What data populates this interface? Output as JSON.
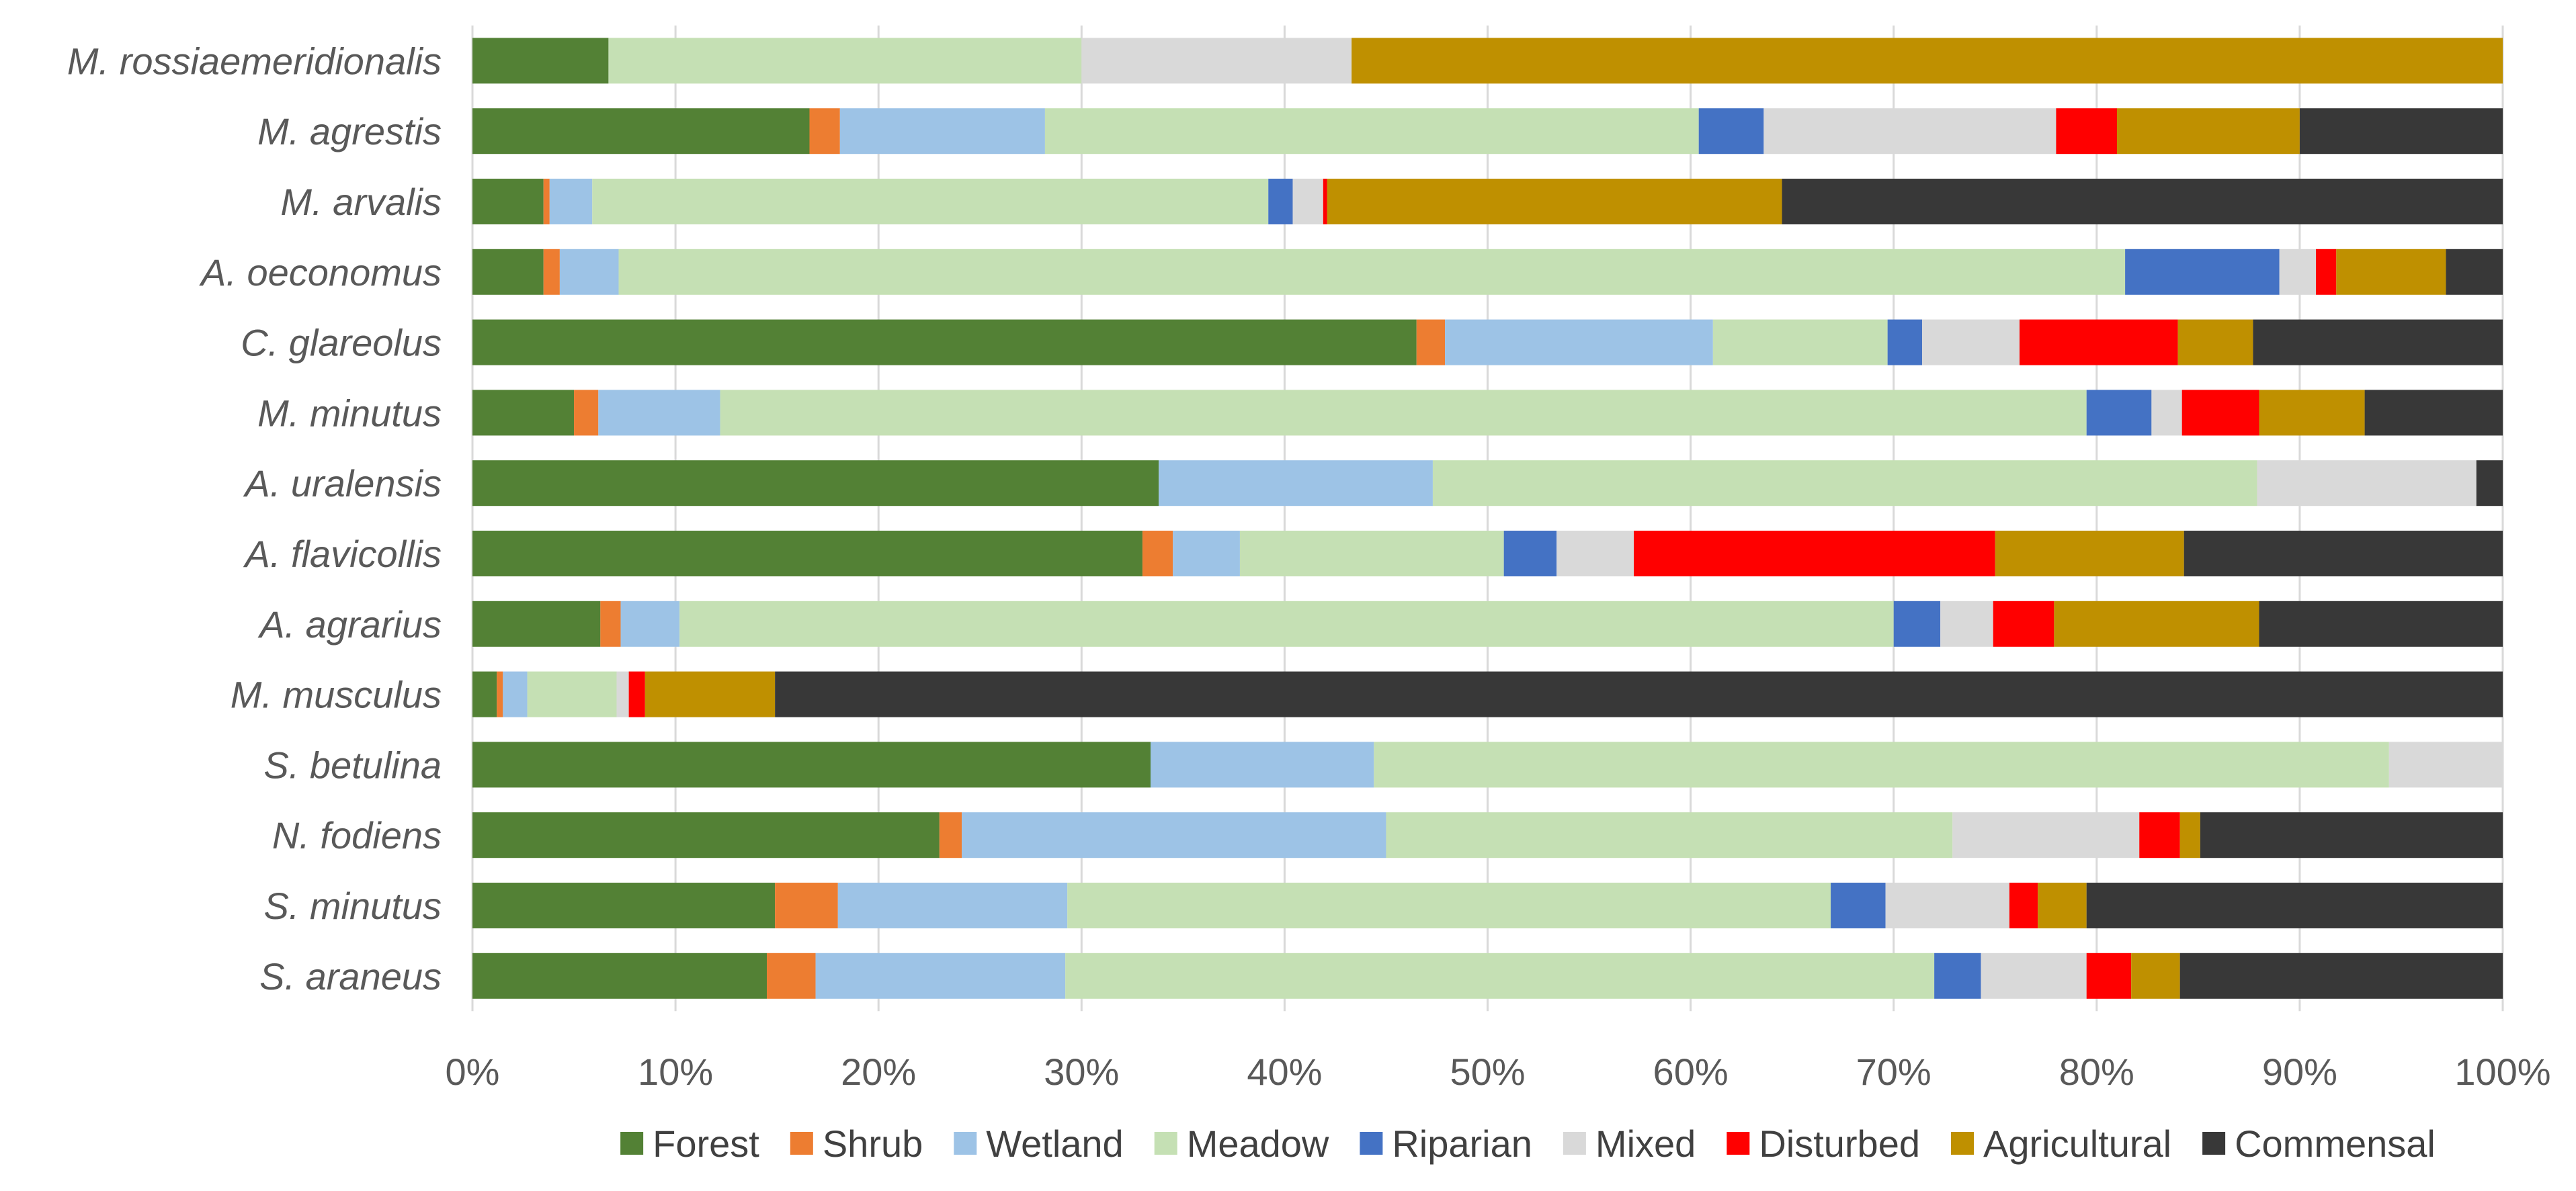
{
  "chart_data": {
    "type": "bar",
    "orientation": "horizontal",
    "stacked": "percent",
    "title": "",
    "xlabel": "",
    "ylabel": "",
    "xlim": [
      0,
      100
    ],
    "x_ticks": [
      "0%",
      "10%",
      "20%",
      "30%",
      "40%",
      "50%",
      "60%",
      "70%",
      "80%",
      "90%",
      "100%"
    ],
    "grid": "vertical",
    "legend_position": "bottom",
    "categories": [
      "M. rossiaemeridionalis",
      "M. agrestis",
      "M. arvalis",
      "A. oeconomus",
      "C. glareolus",
      "M. minutus",
      "A. uralensis",
      "A. flavicollis",
      "A. agrarius",
      "M. musculus",
      "S. betulina",
      "N. fodiens",
      "S. minutus",
      "S. araneus"
    ],
    "series": [
      {
        "name": "Forest",
        "color": "#538135",
        "values": [
          6.7,
          16.6,
          3.5,
          3.5,
          46.5,
          5.0,
          33.8,
          33.0,
          6.3,
          1.2,
          33.4,
          23.0,
          14.9,
          14.5
        ]
      },
      {
        "name": "Shrub",
        "color": "#ed7d31",
        "values": [
          0,
          1.5,
          0.3,
          0.8,
          1.4,
          1.2,
          0,
          1.5,
          1.0,
          0.3,
          0,
          1.1,
          3.1,
          2.4
        ]
      },
      {
        "name": "Wetland",
        "color": "#9dc3e6",
        "values": [
          0,
          10.1,
          2.1,
          2.9,
          13.2,
          6.0,
          13.5,
          3.3,
          2.9,
          1.2,
          11.0,
          20.9,
          11.3,
          12.3
        ]
      },
      {
        "name": "Meadow",
        "color": "#c5e0b4",
        "values": [
          23.3,
          32.2,
          33.3,
          74.2,
          8.6,
          67.3,
          40.6,
          13.0,
          59.8,
          4.4,
          50.0,
          27.9,
          37.6,
          42.8
        ]
      },
      {
        "name": "Riparian",
        "color": "#4472c4",
        "values": [
          0,
          3.2,
          1.2,
          7.6,
          1.7,
          3.2,
          0,
          2.6,
          2.3,
          0,
          0,
          0,
          2.7,
          2.3
        ]
      },
      {
        "name": "Mixed",
        "color": "#d9d9d9",
        "values": [
          13.3,
          14.4,
          1.5,
          1.8,
          4.8,
          1.5,
          10.8,
          3.8,
          2.6,
          0.6,
          5.6,
          9.2,
          6.1,
          5.2
        ]
      },
      {
        "name": "Disturbed",
        "color": "#ff0000",
        "values": [
          0,
          3.0,
          0.2,
          1.0,
          7.8,
          3.8,
          0,
          17.8,
          3.0,
          0.8,
          0,
          2.0,
          1.4,
          2.2
        ]
      },
      {
        "name": "Agricultural",
        "color": "#bf9000",
        "values": [
          56.7,
          9.0,
          22.4,
          5.4,
          3.7,
          5.2,
          0,
          9.3,
          10.1,
          6.4,
          0,
          1.0,
          2.4,
          2.4
        ]
      },
      {
        "name": "Commensal",
        "color": "#383838",
        "values": [
          0,
          10.0,
          35.5,
          2.8,
          12.3,
          6.8,
          1.3,
          15.7,
          12.0,
          85.1,
          0,
          14.9,
          20.5,
          15.9
        ]
      }
    ]
  }
}
